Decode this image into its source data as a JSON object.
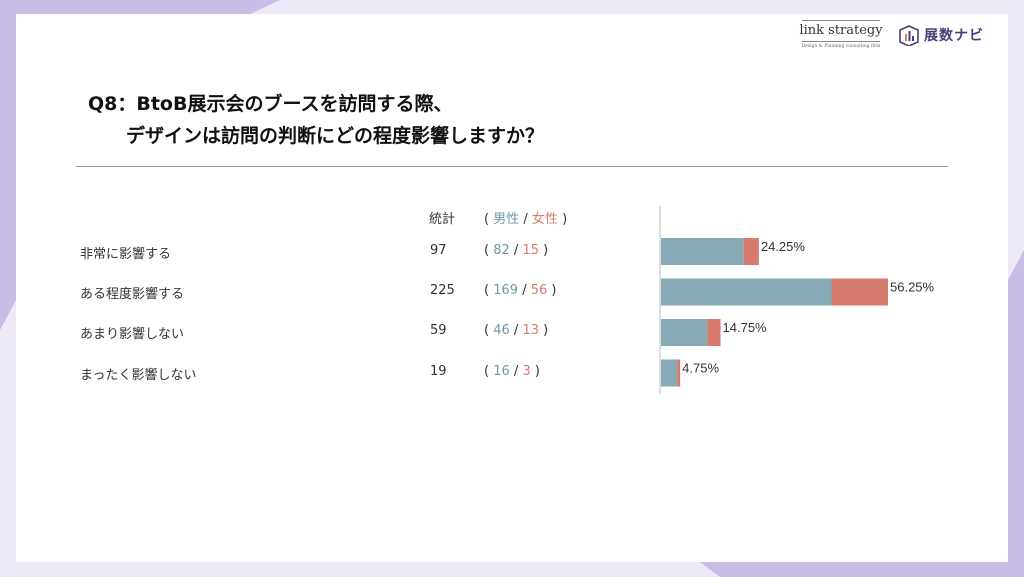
{
  "header": {
    "logo_link_strategy": "link strategy",
    "logo_link_strategy_tagline": "Design & Planning consulting firm",
    "logo_tenji_navi": "展数ナビ"
  },
  "question": {
    "line1": "Q8：BtoB展示会のブースを訪問する際、",
    "line2": "デザインは訪問の判断にどの程度影響しますか？"
  },
  "table_header": {
    "total": "統計",
    "paren_open": "(",
    "male": "男性",
    "slash": "/",
    "female": "女性",
    "paren_close": ")"
  },
  "rows": [
    {
      "label": "非常に影響する",
      "total": "97",
      "male": "82",
      "female": "15"
    },
    {
      "label": "ある程度影響する",
      "total": "225",
      "male": "169",
      "female": "56"
    },
    {
      "label": "あまり影響しない",
      "total": "59",
      "male": "46",
      "female": "13"
    },
    {
      "label": "まったく影響しない",
      "total": "19",
      "male": "16",
      "female": "3"
    }
  ],
  "colors": {
    "male": "#86abb7",
    "female": "#d77b6e",
    "accent": "#4a3d7c"
  },
  "chart_data": {
    "type": "bar",
    "orientation": "horizontal",
    "stacked": true,
    "categories": [
      "非常に影響する",
      "ある程度影響する",
      "あまり影響しない",
      "まったく影響しない"
    ],
    "series": [
      {
        "name": "男性",
        "values": [
          82,
          169,
          46,
          16
        ]
      },
      {
        "name": "女性",
        "values": [
          15,
          56,
          13,
          3
        ]
      }
    ],
    "data_labels": [
      "24.25%",
      "56.25%",
      "14.75%",
      "4.75%"
    ],
    "xlim": [
      0,
      225
    ],
    "grid": false
  }
}
